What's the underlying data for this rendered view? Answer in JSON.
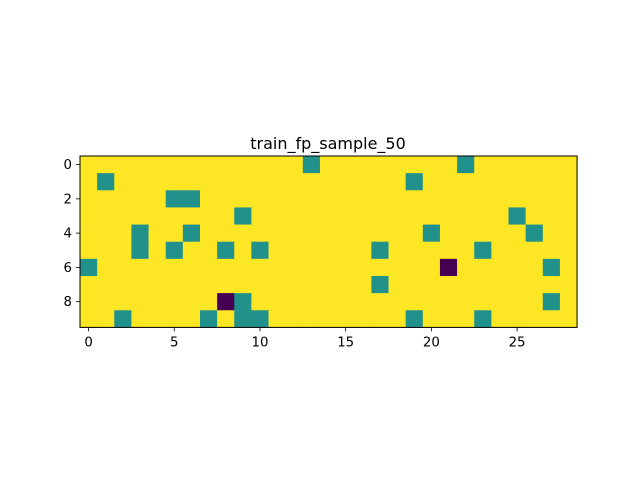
{
  "chart_data": {
    "type": "heatmap",
    "title": "train_fp_sample_50",
    "xlabel": "",
    "ylabel": "",
    "n_rows": 10,
    "n_cols": 29,
    "x_ticks": [
      0,
      5,
      10,
      15,
      20,
      25
    ],
    "y_ticks": [
      0,
      2,
      4,
      6,
      8
    ],
    "value_levels": [
      0,
      1,
      2
    ],
    "level_colors": [
      "#440154",
      "#21918c",
      "#fde725"
    ],
    "grid": false,
    "background_value": 2,
    "cells": [
      {
        "row": 0,
        "col": 13,
        "value": 1
      },
      {
        "row": 0,
        "col": 22,
        "value": 1
      },
      {
        "row": 1,
        "col": 1,
        "value": 1
      },
      {
        "row": 1,
        "col": 19,
        "value": 1
      },
      {
        "row": 2,
        "col": 5,
        "value": 1
      },
      {
        "row": 2,
        "col": 6,
        "value": 1
      },
      {
        "row": 3,
        "col": 9,
        "value": 1
      },
      {
        "row": 3,
        "col": 25,
        "value": 1
      },
      {
        "row": 4,
        "col": 3,
        "value": 1
      },
      {
        "row": 4,
        "col": 6,
        "value": 1
      },
      {
        "row": 4,
        "col": 20,
        "value": 1
      },
      {
        "row": 4,
        "col": 26,
        "value": 1
      },
      {
        "row": 5,
        "col": 3,
        "value": 1
      },
      {
        "row": 5,
        "col": 5,
        "value": 1
      },
      {
        "row": 5,
        "col": 8,
        "value": 1
      },
      {
        "row": 5,
        "col": 10,
        "value": 1
      },
      {
        "row": 5,
        "col": 17,
        "value": 1
      },
      {
        "row": 5,
        "col": 23,
        "value": 1
      },
      {
        "row": 6,
        "col": 0,
        "value": 1
      },
      {
        "row": 6,
        "col": 21,
        "value": 0
      },
      {
        "row": 6,
        "col": 27,
        "value": 1
      },
      {
        "row": 7,
        "col": 17,
        "value": 1
      },
      {
        "row": 8,
        "col": 8,
        "value": 0
      },
      {
        "row": 8,
        "col": 9,
        "value": 1
      },
      {
        "row": 8,
        "col": 27,
        "value": 1
      },
      {
        "row": 9,
        "col": 2,
        "value": 1
      },
      {
        "row": 9,
        "col": 7,
        "value": 1
      },
      {
        "row": 9,
        "col": 9,
        "value": 1
      },
      {
        "row": 9,
        "col": 10,
        "value": 1
      },
      {
        "row": 9,
        "col": 19,
        "value": 1
      },
      {
        "row": 9,
        "col": 23,
        "value": 1
      }
    ]
  }
}
